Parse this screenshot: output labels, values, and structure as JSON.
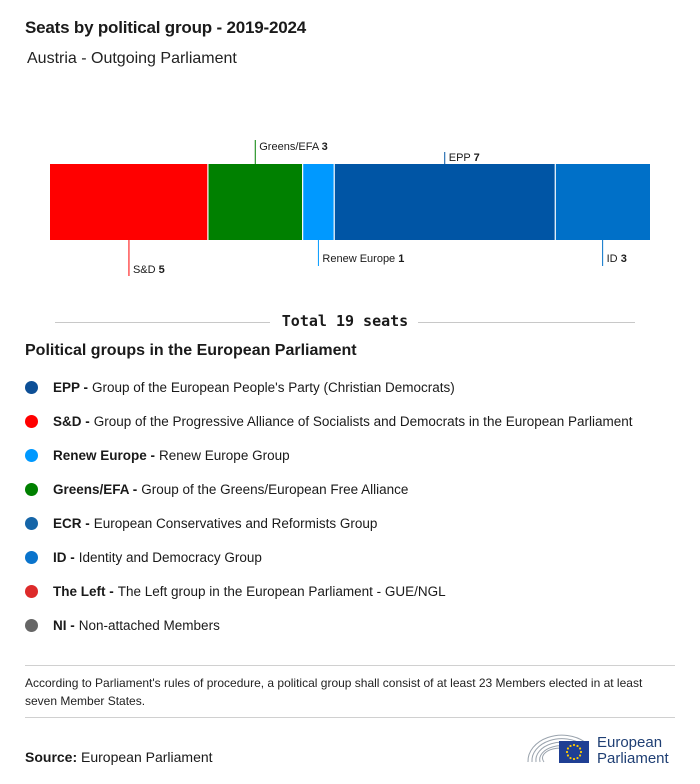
{
  "header": {
    "title": "Seats by political group - 2019-2024",
    "subtitle": "Austria - Outgoing Parliament"
  },
  "chart_data": {
    "type": "bar",
    "orientation": "horizontal-stacked",
    "categories": [
      "S&D",
      "Greens/EFA",
      "Renew Europe",
      "EPP",
      "ID"
    ],
    "values": [
      5,
      3,
      1,
      7,
      3
    ],
    "colors": [
      "#ff0000",
      "#008000",
      "#0099ff",
      "#0055a5",
      "#0070c8"
    ],
    "label_side": [
      "bottom",
      "top",
      "bottom",
      "top",
      "bottom"
    ],
    "total_label": "Total 19 seats"
  },
  "legend": {
    "title": "Political groups in the European Parliament",
    "items": [
      {
        "abbr": "EPP -",
        "desc": "Group of the European People's Party (Christian Democrats)",
        "color": "#0d4f96"
      },
      {
        "abbr": "S&D -",
        "desc": "Group of the Progressive Alliance of Socialists and Democrats in the European Parliament",
        "color": "#ff0000"
      },
      {
        "abbr": "Renew Europe -",
        "desc": "Renew Europe Group",
        "color": "#0099ff"
      },
      {
        "abbr": "Greens/EFA -",
        "desc": "Group of the Greens/European Free Alliance",
        "color": "#008000"
      },
      {
        "abbr": "ECR -",
        "desc": "European Conservatives and Reformists Group",
        "color": "#1565a8"
      },
      {
        "abbr": "ID -",
        "desc": "Identity and Democracy Group",
        "color": "#0a74cc"
      },
      {
        "abbr": "The Left -",
        "desc": "The Left group in the European Parliament - GUE/NGL",
        "color": "#dd2a2a"
      },
      {
        "abbr": "NI -",
        "desc": "Non-attached Members",
        "color": "#666666"
      }
    ]
  },
  "footnote": "According to Parliament's rules of procedure, a political group shall consist of at least 23 Members elected in at least seven Member States.",
  "source": {
    "label": "Source:",
    "value": "European Parliament"
  },
  "logo": {
    "line1": "European",
    "line2": "Parliament",
    "flag_color": "#1f3f94",
    "star_color": "#ffcc00"
  }
}
